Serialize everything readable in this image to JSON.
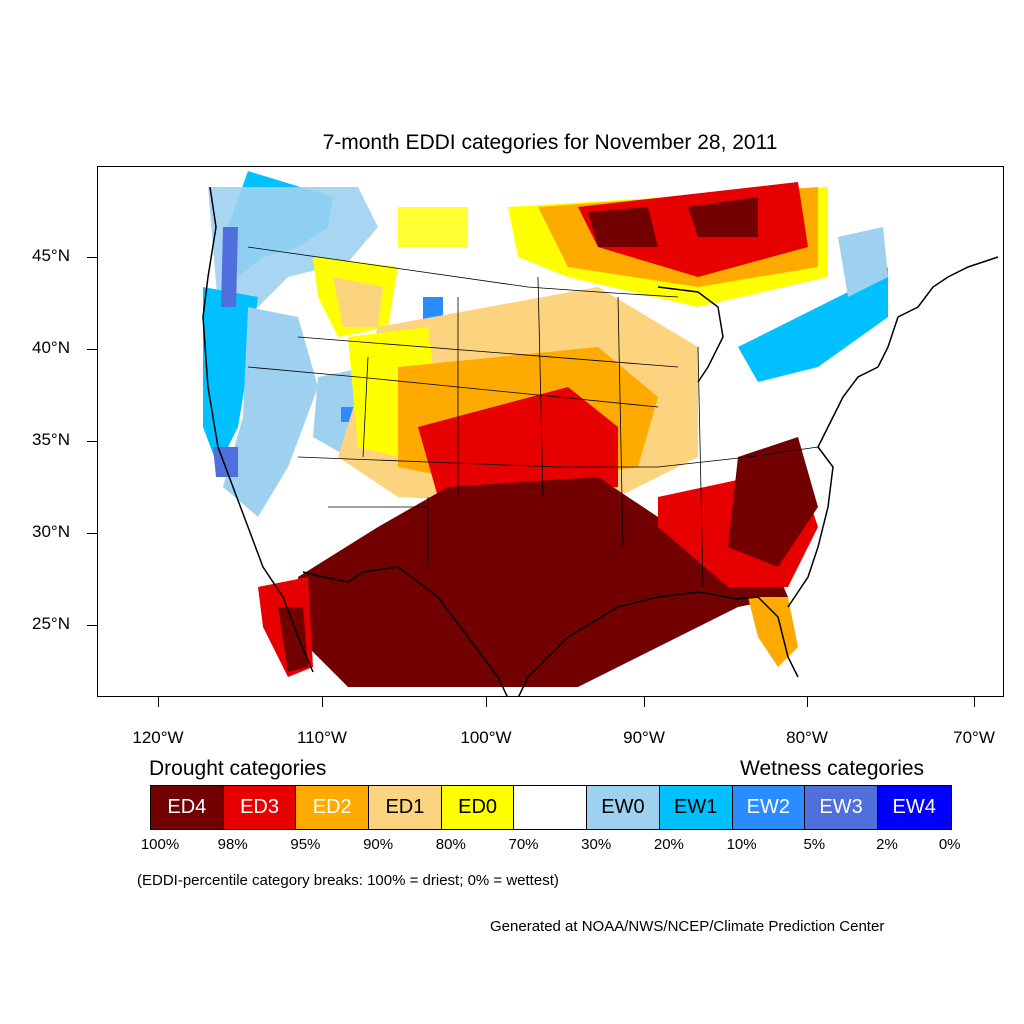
{
  "title": "7-month EDDI categories for November 28, 2011",
  "y_axis_labels": [
    "45°N",
    "40°N",
    "35°N",
    "30°N",
    "25°N"
  ],
  "x_axis_labels": [
    "120°W",
    "110°W",
    "100°W",
    "90°W",
    "80°W",
    "70°W"
  ],
  "legend": {
    "drought_heading": "Drought categories",
    "wetness_heading": "Wetness categories",
    "categories": [
      {
        "label": "ED4",
        "color": "#730000",
        "text_color": "#ffffff"
      },
      {
        "label": "ED3",
        "color": "#e60000",
        "text_color": "#ffffff"
      },
      {
        "label": "ED2",
        "color": "#ffaa00",
        "text_color": "#ffffff"
      },
      {
        "label": "ED1",
        "color": "#fcd37f",
        "text_color": "#000000"
      },
      {
        "label": "ED0",
        "color": "#ffff00",
        "text_color": "#000000"
      },
      {
        "label": "",
        "color": "#ffffff",
        "text_color": "#000000"
      },
      {
        "label": "EW0",
        "color": "#9ed0f0",
        "text_color": "#000000"
      },
      {
        "label": "EW1",
        "color": "#00c0ff",
        "text_color": "#000000"
      },
      {
        "label": "EW2",
        "color": "#2a8cff",
        "text_color": "#ffffff"
      },
      {
        "label": "EW3",
        "color": "#4f6fdd",
        "text_color": "#ffffff"
      },
      {
        "label": "EW4",
        "color": "#0000ff",
        "text_color": "#ffffff"
      }
    ],
    "breaks": [
      "100%",
      "98%",
      "95%",
      "90%",
      "80%",
      "70%",
      "30%",
      "20%",
      "10%",
      "5%",
      "2%",
      "0%"
    ]
  },
  "note": "(EDDI-percentile category breaks: 100% = driest; 0% = wettest)",
  "credit": "Generated at NOAA/NWS/NCEP/Climate Prediction Center"
}
